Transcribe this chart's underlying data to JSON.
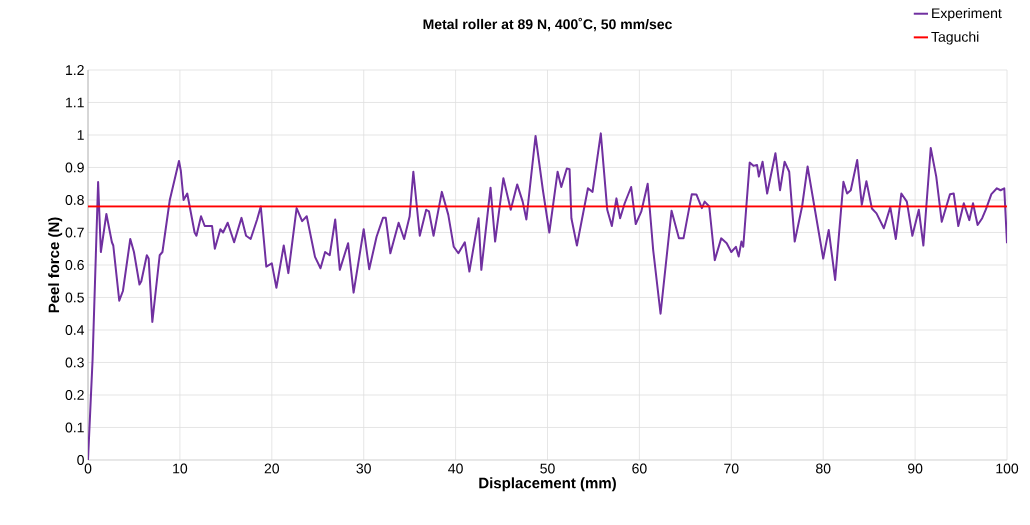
{
  "chart_data": {
    "type": "line",
    "title": "Metal roller at 89 N, 400˚C, 50 mm/sec",
    "xlabel": "Displacement (mm)",
    "ylabel": "Peel force (N)",
    "xlim": [
      0,
      100
    ],
    "xticks": [
      0,
      10,
      20,
      30,
      40,
      50,
      60,
      70,
      80,
      90,
      100
    ],
    "ylim": [
      0,
      1.2
    ],
    "yticks": [
      0,
      0.1,
      0.2,
      0.3,
      0.4,
      0.5,
      0.6,
      0.7,
      0.8,
      0.9,
      1,
      1.1,
      1.2
    ],
    "grid": true,
    "legend": "top right",
    "marker": "none",
    "line_style": "solid",
    "series": [
      {
        "name": "Experiment",
        "color": "#7030a0",
        "x": [
          0,
          0.5,
          1.1,
          1.4,
          2.0,
          2.6,
          2.75,
          3.4,
          3.8,
          4.6,
          5.0,
          5.6,
          5.8,
          6.4,
          6.6,
          7.0,
          7.8,
          8.1,
          8.9,
          9.4,
          9.9,
          10.1,
          10.4,
          10.8,
          11.6,
          11.8,
          12.3,
          12.7,
          13.5,
          13.8,
          14.4,
          14.7,
          15.2,
          15.9,
          16.7,
          17.2,
          17.7,
          18.4,
          18.8,
          19.4,
          20.0,
          20.5,
          21.3,
          21.8,
          22.7,
          23.3,
          23.8,
          24.7,
          25.3,
          25.8,
          26.3,
          26.9,
          27.4,
          28.3,
          28.9,
          30.0,
          30.6,
          31.4,
          32.1,
          32.4,
          32.9,
          33.8,
          34.4,
          35.0,
          35.4,
          36.1,
          36.8,
          37.1,
          37.6,
          38.5,
          39.2,
          39.8,
          40.3,
          41.0,
          41.5,
          42.5,
          42.8,
          43.8,
          44.3,
          45.2,
          46.0,
          46.7,
          47.3,
          47.7,
          48.7,
          49.5,
          50.2,
          51.1,
          51.5,
          52.1,
          52.4,
          52.6,
          53.2,
          54.4,
          54.9,
          55.8,
          56.5,
          57.0,
          57.5,
          57.9,
          58.4,
          59.1,
          59.6,
          60.2,
          60.9,
          61.5,
          62.3,
          63.5,
          64.3,
          64.8,
          65.7,
          66.2,
          66.8,
          67.1,
          67.6,
          68.2,
          68.9,
          69.5,
          70.0,
          70.5,
          70.8,
          71.1,
          71.3,
          72.0,
          72.4,
          72.8,
          73.0,
          73.4,
          73.9,
          74.8,
          75.3,
          75.8,
          76.3,
          76.9,
          77.7,
          78.3,
          79.1,
          80.0,
          80.6,
          81.3,
          82.2,
          82.6,
          83.0,
          83.7,
          84.2,
          84.7,
          85.3,
          85.8,
          86.6,
          87.3,
          87.9,
          88.5,
          89.1,
          89.7,
          90.4,
          90.9,
          91.7,
          92.3,
          92.9,
          93.8,
          94.2,
          94.7,
          95.3,
          95.9,
          96.3,
          96.8,
          97.3,
          97.7,
          98.3,
          98.9,
          99.3,
          99.7,
          100
        ],
        "values": [
          0,
          0.31,
          0.855,
          0.64,
          0.757,
          0.67,
          0.66,
          0.49,
          0.52,
          0.68,
          0.64,
          0.54,
          0.55,
          0.63,
          0.62,
          0.425,
          0.63,
          0.64,
          0.8,
          0.86,
          0.92,
          0.89,
          0.8,
          0.82,
          0.7,
          0.69,
          0.75,
          0.72,
          0.72,
          0.65,
          0.71,
          0.7,
          0.73,
          0.67,
          0.745,
          0.69,
          0.68,
          0.74,
          0.78,
          0.595,
          0.605,
          0.53,
          0.66,
          0.575,
          0.775,
          0.735,
          0.75,
          0.625,
          0.59,
          0.64,
          0.63,
          0.74,
          0.585,
          0.667,
          0.515,
          0.71,
          0.587,
          0.687,
          0.745,
          0.745,
          0.636,
          0.73,
          0.68,
          0.75,
          0.887,
          0.69,
          0.77,
          0.765,
          0.69,
          0.825,
          0.755,
          0.656,
          0.636,
          0.67,
          0.58,
          0.744,
          0.585,
          0.838,
          0.672,
          0.867,
          0.77,
          0.848,
          0.795,
          0.74,
          0.997,
          0.83,
          0.7,
          0.887,
          0.84,
          0.897,
          0.895,
          0.744,
          0.66,
          0.836,
          0.825,
          1.005,
          0.77,
          0.72,
          0.805,
          0.744,
          0.79,
          0.84,
          0.726,
          0.764,
          0.85,
          0.646,
          0.45,
          0.767,
          0.682,
          0.682,
          0.818,
          0.817,
          0.775,
          0.795,
          0.78,
          0.615,
          0.682,
          0.667,
          0.64,
          0.656,
          0.626,
          0.672,
          0.656,
          0.915,
          0.905,
          0.908,
          0.872,
          0.918,
          0.82,
          0.944,
          0.83,
          0.918,
          0.887,
          0.672,
          0.78,
          0.903,
          0.77,
          0.62,
          0.708,
          0.554,
          0.856,
          0.82,
          0.83,
          0.923,
          0.785,
          0.858,
          0.774,
          0.759,
          0.713,
          0.778,
          0.68,
          0.82,
          0.795,
          0.69,
          0.77,
          0.66,
          0.96,
          0.872,
          0.733,
          0.818,
          0.82,
          0.72,
          0.79,
          0.738,
          0.79,
          0.723,
          0.744,
          0.771,
          0.818,
          0.836,
          0.83,
          0.836,
          0.667
        ]
      },
      {
        "name": "Taguchi",
        "color": "#ff0000",
        "x": [
          0,
          100
        ],
        "values": [
          0.78,
          0.78
        ]
      }
    ]
  }
}
